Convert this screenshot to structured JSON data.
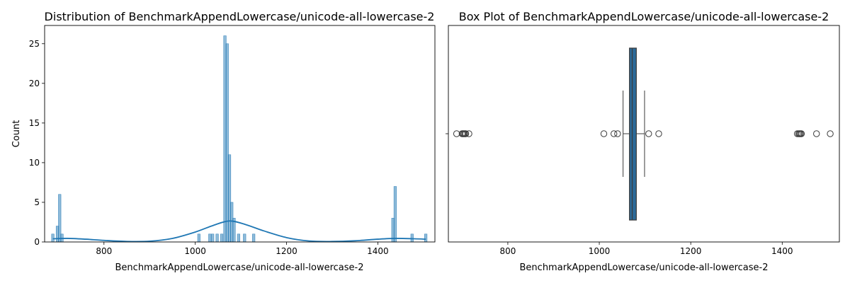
{
  "chart_data": [
    {
      "type": "histogram",
      "title": "Distribution of BenchmarkAppendLowercase/unicode-all-lowercase-2",
      "xlabel": "BenchmarkAppendLowercase/unicode-all-lowercase-2",
      "ylabel": "Count",
      "xlim": [
        670,
        1525
      ],
      "ylim": [
        0,
        27.3
      ],
      "xticks": [
        800,
        1000,
        1200,
        1400
      ],
      "yticks": [
        0,
        5,
        10,
        15,
        20,
        25
      ],
      "bar_color": "#1f77b4",
      "kde": true,
      "bins": [
        {
          "x": 688,
          "count": 1
        },
        {
          "x": 698,
          "count": 2
        },
        {
          "x": 703,
          "count": 6
        },
        {
          "x": 708,
          "count": 1
        },
        {
          "x": 1008,
          "count": 1
        },
        {
          "x": 1032,
          "count": 1
        },
        {
          "x": 1038,
          "count": 1
        },
        {
          "x": 1048,
          "count": 1
        },
        {
          "x": 1058,
          "count": 1
        },
        {
          "x": 1065,
          "count": 26
        },
        {
          "x": 1070,
          "count": 25
        },
        {
          "x": 1075,
          "count": 11
        },
        {
          "x": 1080,
          "count": 5
        },
        {
          "x": 1085,
          "count": 3
        },
        {
          "x": 1095,
          "count": 1
        },
        {
          "x": 1108,
          "count": 1
        },
        {
          "x": 1128,
          "count": 1
        },
        {
          "x": 1433,
          "count": 3
        },
        {
          "x": 1438,
          "count": 7
        },
        {
          "x": 1475,
          "count": 1
        },
        {
          "x": 1505,
          "count": 1
        }
      ],
      "kde_curve": [
        {
          "x": 688,
          "y": 0.4
        },
        {
          "x": 720,
          "y": 0.45
        },
        {
          "x": 760,
          "y": 0.35
        },
        {
          "x": 800,
          "y": 0.2
        },
        {
          "x": 850,
          "y": 0.07
        },
        {
          "x": 900,
          "y": 0.1
        },
        {
          "x": 950,
          "y": 0.45
        },
        {
          "x": 1000,
          "y": 1.25
        },
        {
          "x": 1040,
          "y": 2.1
        },
        {
          "x": 1075,
          "y": 2.65
        },
        {
          "x": 1110,
          "y": 2.2
        },
        {
          "x": 1150,
          "y": 1.4
        },
        {
          "x": 1200,
          "y": 0.55
        },
        {
          "x": 1250,
          "y": 0.12
        },
        {
          "x": 1300,
          "y": 0.06
        },
        {
          "x": 1350,
          "y": 0.15
        },
        {
          "x": 1400,
          "y": 0.35
        },
        {
          "x": 1440,
          "y": 0.45
        },
        {
          "x": 1480,
          "y": 0.4
        },
        {
          "x": 1505,
          "y": 0.35
        }
      ]
    },
    {
      "type": "box",
      "title": "Box Plot of BenchmarkAppendLowercase/unicode-all-lowercase-2",
      "xlabel": "BenchmarkAppendLowercase/unicode-all-lowercase-2",
      "xlim": [
        670,
        1525
      ],
      "xticks": [
        800,
        1000,
        1200,
        1400
      ],
      "box_color": "#2b6a99",
      "q1": 1066,
      "median": 1072,
      "q3": 1081,
      "whisker_low": 1052,
      "whisker_high": 1099,
      "outliers": [
        688,
        700,
        702,
        704,
        706,
        708,
        715,
        1010,
        1032,
        1040,
        1108,
        1130,
        1433,
        1436,
        1438,
        1440,
        1442,
        1475,
        1505
      ]
    }
  ]
}
